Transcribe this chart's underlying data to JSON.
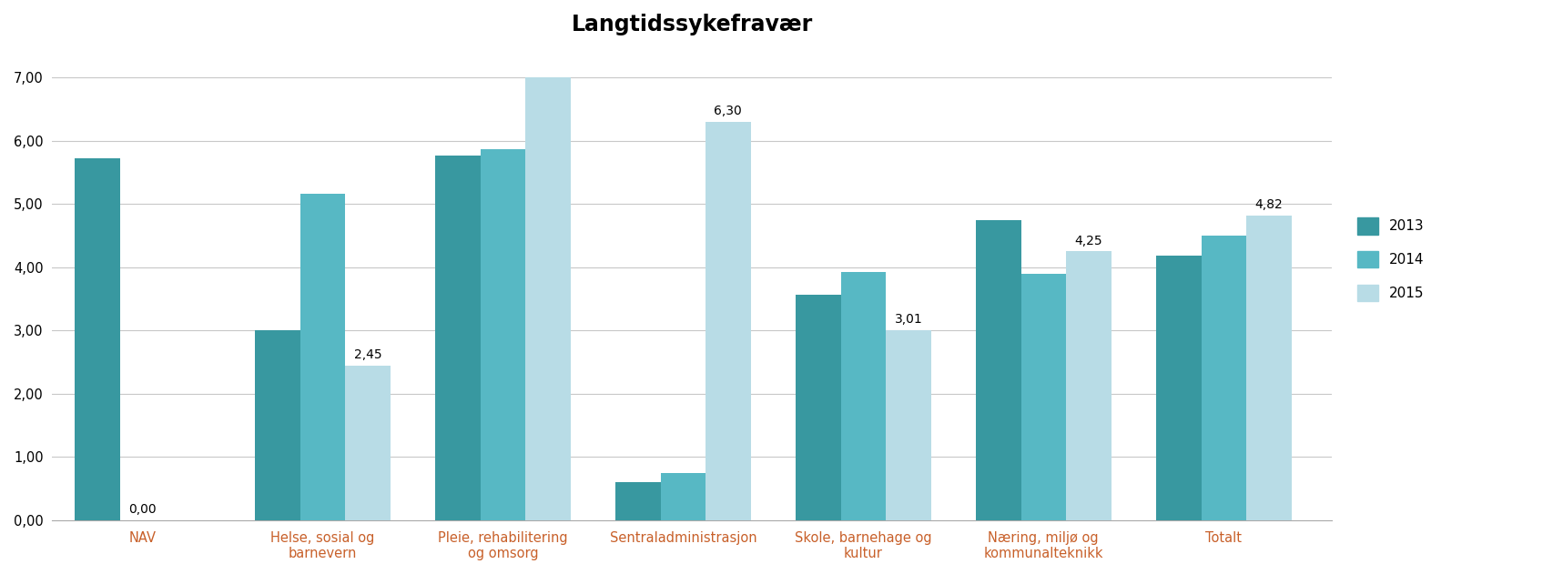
{
  "title": "Langtidssykefravær",
  "categories": [
    "NAV",
    "Helse, sosial og\nbarnevern",
    "Pleie, rehabilitering\nog omsorg",
    "Sentraladministrasjon",
    "Skole, barnehage og\nkultur",
    "Næring, miljø og\nkommunalteknikk",
    "Totalt"
  ],
  "years": [
    "2013",
    "2014",
    "2015"
  ],
  "values": {
    "2013": [
      5.73,
      3.0,
      5.77,
      0.6,
      3.57,
      4.74,
      4.18
    ],
    "2014": [
      0.0,
      5.17,
      5.87,
      0.75,
      3.93,
      3.9,
      4.5
    ],
    "2015": [
      0,
      2.45,
      7.0,
      6.3,
      3.01,
      4.25,
      4.82
    ]
  },
  "bar_colors": {
    "2013": "#3898a0",
    "2014": "#57b8c4",
    "2015": "#b8dce6"
  },
  "ylim": [
    0,
    7.5
  ],
  "yticks": [
    0.0,
    1.0,
    2.0,
    3.0,
    4.0,
    5.0,
    6.0,
    7.0
  ],
  "ytick_labels": [
    "0,00",
    "1,00",
    "2,00",
    "3,00",
    "4,00",
    "5,00",
    "6,00",
    "7,00"
  ],
  "background_color": "#ffffff",
  "grid_color": "#c8c8c8",
  "title_fontsize": 17,
  "tick_fontsize": 10.5,
  "annotation_fontsize": 10,
  "legend_fontsize": 11,
  "bar_width": 0.25,
  "annotations": [
    {
      "cat_idx": 0,
      "year_idx": 1,
      "text": "0,00",
      "value": 0.0
    },
    {
      "cat_idx": 1,
      "year_idx": 2,
      "text": "2,45",
      "value": 2.45
    },
    {
      "cat_idx": 3,
      "year_idx": 2,
      "text": "6,30",
      "value": 6.3
    },
    {
      "cat_idx": 4,
      "year_idx": 2,
      "text": "3,01",
      "value": 3.01
    },
    {
      "cat_idx": 5,
      "year_idx": 2,
      "text": "4,25",
      "value": 4.25
    },
    {
      "cat_idx": 6,
      "year_idx": 2,
      "text": "4,82",
      "value": 4.82
    }
  ],
  "xlabel_color": "#c8602a",
  "spine_color": "#aaaaaa"
}
